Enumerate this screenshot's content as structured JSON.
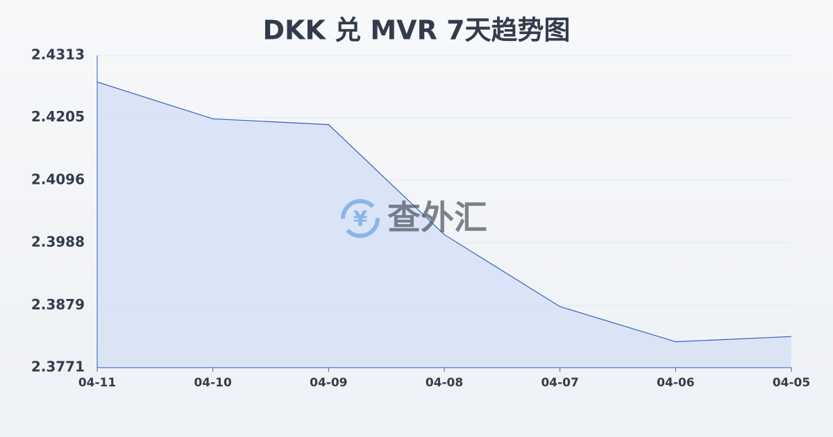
{
  "chart_data": {
    "type": "area",
    "title": "DKK 兑 MVR 7天趋势图",
    "watermark": "查外汇",
    "categories": [
      "04-11",
      "04-10",
      "04-09",
      "04-08",
      "04-07",
      "04-06",
      "04-05"
    ],
    "values": [
      2.4267,
      2.4203,
      2.4193,
      2.4002,
      2.3877,
      2.3816,
      2.3825
    ],
    "color": "#2f5fbf",
    "fill": "#d8e2f5",
    "ylim": [
      2.3771,
      2.4313
    ],
    "yticks": [
      2.3771,
      2.3879,
      2.3988,
      2.4096,
      2.4205,
      2.4313
    ],
    "grid": true
  }
}
